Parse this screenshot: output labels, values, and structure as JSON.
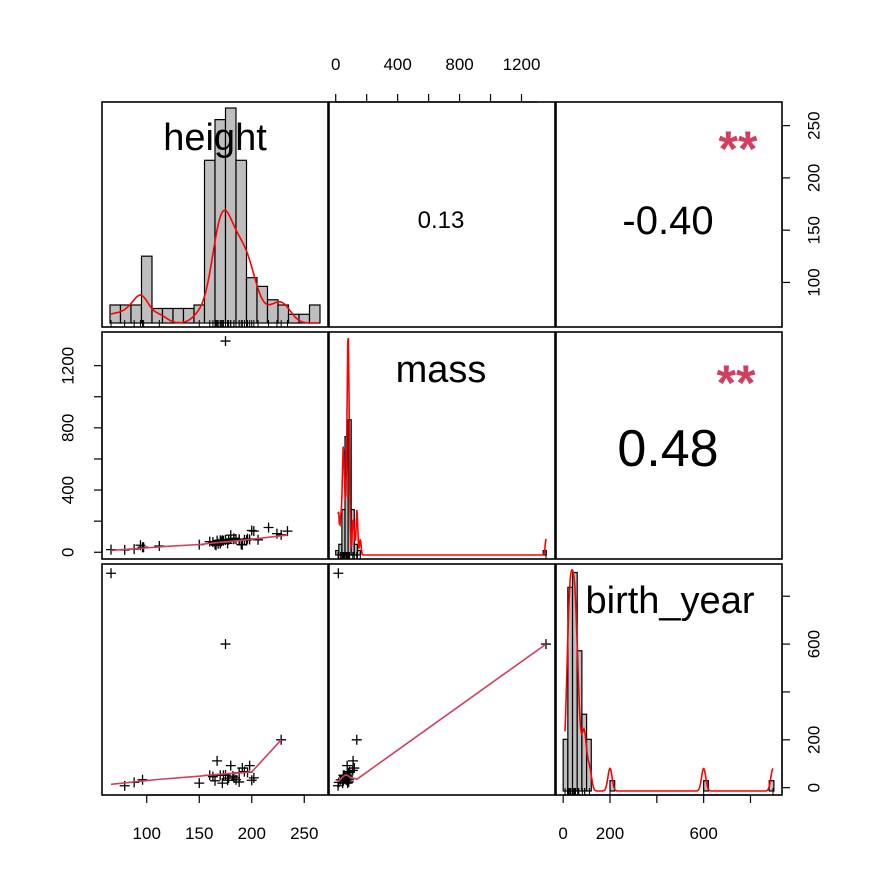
{
  "chart_data": {
    "type": "scatter-matrix",
    "variables": [
      "height",
      "mass",
      "birth_year"
    ],
    "axes": {
      "height": {
        "range": [
          66,
          264
        ],
        "ticks": [
          100,
          150,
          200,
          250
        ]
      },
      "mass": {
        "range": [
          15,
          1358
        ],
        "ticks": [
          0,
          400,
          800,
          1200
        ]
      },
      "birth_year": {
        "range": [
          8,
          896
        ],
        "ticks": [
          0,
          200,
          400,
          600,
          800
        ],
        "tick_labels": [
          "0",
          "200",
          "",
          "600",
          ""
        ]
      }
    },
    "correlations": [
      {
        "row": "height",
        "col": "mass",
        "value": "0.13",
        "stars": ""
      },
      {
        "row": "height",
        "col": "birth_year",
        "value": "-0.40",
        "stars": "**"
      },
      {
        "row": "mass",
        "col": "birth_year",
        "value": "0.48",
        "stars": "**"
      }
    ],
    "histograms": {
      "height": {
        "breaks": [
          65,
          75,
          85,
          95,
          105,
          115,
          125,
          135,
          145,
          155,
          165,
          175,
          185,
          195,
          205,
          215,
          225,
          235,
          245,
          255,
          265
        ],
        "density": [
          0.0031,
          0.0031,
          0.0031,
          0.0115,
          0.0025,
          0.0025,
          0.0025,
          0.0025,
          0.0031,
          0.028,
          0.035,
          0.037,
          0.028,
          0.0078,
          0.0063,
          0.004,
          0.0031,
          0.0015,
          0.0015,
          0.0031
        ]
      },
      "mass": {
        "breaks": [
          0,
          20,
          40,
          60,
          80,
          100,
          120,
          140,
          160,
          1340,
          1360
        ],
        "density": [
          0.0005,
          0.0012,
          0.0051,
          0.0133,
          0.0152,
          0.0051,
          0.0012,
          0.0005,
          0,
          0.0005
        ]
      },
      "birth_year": {
        "breaks": [
          0,
          20,
          40,
          60,
          80,
          100,
          120,
          200,
          220,
          600,
          620,
          880,
          900
        ],
        "density": [
          0.0035,
          0.0138,
          0.0148,
          0.0095,
          0.0052,
          0.0035,
          0,
          0.0007,
          0,
          0.0007,
          0,
          0.0007
        ]
      }
    },
    "pairs": {
      "height_mass": [
        [
          66,
          17
        ],
        [
          79,
          15
        ],
        [
          88,
          20
        ],
        [
          94,
          45
        ],
        [
          96,
          32
        ],
        [
          97,
          32
        ],
        [
          112,
          40
        ],
        [
          150,
          49
        ],
        [
          160,
          68
        ],
        [
          163,
          65
        ],
        [
          165,
          50
        ],
        [
          166,
          45
        ],
        [
          167,
          75
        ],
        [
          168,
          55
        ],
        [
          170,
          56
        ],
        [
          170,
          77
        ],
        [
          171,
          70
        ],
        [
          172,
          77
        ],
        [
          173,
          74
        ],
        [
          175,
          79
        ],
        [
          175,
          80
        ],
        [
          175,
          1358
        ],
        [
          177,
          57
        ],
        [
          178,
          80
        ],
        [
          180,
          85
        ],
        [
          180,
          110
        ],
        [
          183,
          84
        ],
        [
          183,
          90
        ],
        [
          185,
          85
        ],
        [
          188,
          84
        ],
        [
          188,
          80
        ],
        [
          190,
          50
        ],
        [
          191,
          48
        ],
        [
          193,
          80
        ],
        [
          195,
          78
        ],
        [
          196,
          87
        ],
        [
          198,
          82
        ],
        [
          200,
          140
        ],
        [
          202,
          136
        ],
        [
          206,
          80
        ],
        [
          216,
          159
        ],
        [
          224,
          120
        ],
        [
          228,
          112
        ],
        [
          234,
          136
        ]
      ],
      "height_birth": [
        [
          66,
          896
        ],
        [
          79,
          8
        ],
        [
          88,
          22
        ],
        [
          96,
          33
        ],
        [
          150,
          19
        ],
        [
          160,
          52
        ],
        [
          163,
          46
        ],
        [
          165,
          29
        ],
        [
          167,
          112
        ],
        [
          170,
          52
        ],
        [
          172,
          19
        ],
        [
          173,
          52
        ],
        [
          175,
          600
        ],
        [
          175,
          53
        ],
        [
          177,
          31
        ],
        [
          178,
          40
        ],
        [
          180,
          92
        ],
        [
          182,
          48
        ],
        [
          183,
          41
        ],
        [
          185,
          33
        ],
        [
          188,
          62
        ],
        [
          188,
          24
        ],
        [
          191,
          82
        ],
        [
          193,
          67
        ],
        [
          196,
          64
        ],
        [
          198,
          92
        ],
        [
          200,
          31
        ],
        [
          202,
          41
        ],
        [
          228,
          200
        ]
      ],
      "mass_birth": [
        [
          17,
          896
        ],
        [
          15,
          8
        ],
        [
          20,
          22
        ],
        [
          32,
          33
        ],
        [
          45,
          19
        ],
        [
          49,
          52
        ],
        [
          50,
          29
        ],
        [
          55,
          46
        ],
        [
          56,
          52
        ],
        [
          65,
          41
        ],
        [
          68,
          31
        ],
        [
          74,
          92
        ],
        [
          75,
          52
        ],
        [
          77,
          19
        ],
        [
          78,
          46
        ],
        [
          79,
          53
        ],
        [
          80,
          40
        ],
        [
          82,
          62
        ],
        [
          84,
          24
        ],
        [
          85,
          33
        ],
        [
          87,
          64
        ],
        [
          90,
          67
        ],
        [
          110,
          72
        ],
        [
          112,
          112
        ],
        [
          120,
          82
        ],
        [
          136,
          200
        ],
        [
          1358,
          600
        ]
      ]
    },
    "fits": {
      "height_mass": [
        [
          66,
          12
        ],
        [
          120,
          38
        ],
        [
          150,
          50
        ],
        [
          170,
          64
        ],
        [
          180,
          70
        ],
        [
          200,
          84
        ],
        [
          234,
          110
        ]
      ],
      "mass_height": [
        [
          15,
          110
        ],
        [
          40,
          120
        ],
        [
          70,
          180
        ],
        [
          90,
          186
        ],
        [
          110,
          190
        ],
        [
          136,
          200
        ],
        [
          1358,
          228
        ]
      ],
      "height_birth": [
        [
          66,
          14
        ],
        [
          110,
          34
        ],
        [
          150,
          48
        ],
        [
          165,
          55
        ],
        [
          175,
          58
        ],
        [
          190,
          62
        ],
        [
          200,
          66
        ],
        [
          228,
          200
        ]
      ],
      "birth_height": [
        [
          8,
          80
        ],
        [
          25,
          150
        ],
        [
          40,
          174
        ],
        [
          55,
          185
        ],
        [
          75,
          182
        ],
        [
          110,
          170
        ],
        [
          200,
          160
        ],
        [
          600,
          178
        ],
        [
          896,
          66
        ]
      ],
      "mass_birth": [
        [
          15,
          25
        ],
        [
          30,
          35
        ],
        [
          45,
          45
        ],
        [
          60,
          52
        ],
        [
          75,
          52
        ],
        [
          90,
          45
        ],
        [
          136,
          35
        ],
        [
          1358,
          600
        ]
      ],
      "birth_mass": [
        [
          8,
          20
        ],
        [
          30,
          55
        ],
        [
          50,
          80
        ],
        [
          70,
          85
        ],
        [
          120,
          85
        ],
        [
          200,
          110
        ],
        [
          600,
          1358
        ],
        [
          896,
          30
        ]
      ]
    }
  }
}
